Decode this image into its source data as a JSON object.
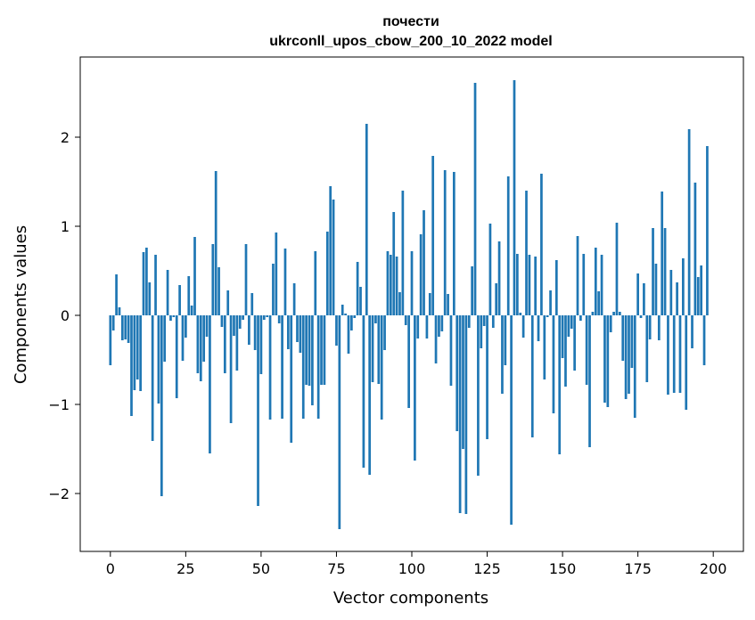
{
  "chart_data": {
    "type": "bar",
    "title": [
      "почести",
      "ukrconll_upos_cbow_200_10_2022 model"
    ],
    "xlabel": "Vector components",
    "ylabel": "Components values",
    "xlim": [
      -10,
      210
    ],
    "ylim": [
      -2.65,
      2.9
    ],
    "xticks": [
      0,
      25,
      50,
      75,
      100,
      125,
      150,
      175,
      200
    ],
    "yticks": [
      -2,
      -1,
      0,
      1,
      2
    ],
    "ytick_labels": [
      "−2",
      "−1",
      "0",
      "1",
      "2"
    ],
    "grid": false,
    "bar_color": "#1f77b4",
    "values": [
      -0.56,
      -0.17,
      0.46,
      0.09,
      -0.28,
      -0.27,
      -0.31,
      -1.13,
      -0.84,
      -0.72,
      -0.85,
      0.71,
      0.76,
      0.37,
      -1.41,
      0.68,
      -0.99,
      -2.03,
      -0.52,
      0.51,
      -0.06,
      -0.02,
      -0.93,
      0.34,
      -0.51,
      -0.25,
      0.44,
      0.11,
      0.88,
      -0.65,
      -0.74,
      -0.52,
      -0.24,
      -1.55,
      0.8,
      1.62,
      0.54,
      -0.13,
      -0.65,
      0.28,
      -1.21,
      -0.23,
      -0.62,
      -0.15,
      -0.05,
      0.8,
      -0.33,
      0.25,
      -0.39,
      -2.14,
      -0.66,
      -0.05,
      -0.02,
      -1.17,
      0.58,
      0.93,
      -0.09,
      -1.16,
      0.75,
      -0.38,
      -1.43,
      0.36,
      -0.3,
      -0.42,
      -1.16,
      -0.78,
      -0.79,
      -1.01,
      0.72,
      -1.16,
      -0.78,
      -0.78,
      0.94,
      1.45,
      1.3,
      -0.34,
      -2.4,
      0.12,
      0.02,
      -0.43,
      -0.17,
      -0.03,
      0.6,
      0.32,
      -1.71,
      2.15,
      -1.79,
      -0.75,
      -0.09,
      -0.77,
      -1.17,
      -0.39,
      0.72,
      0.68,
      1.16,
      0.66,
      0.26,
      1.4,
      -0.11,
      -1.04,
      0.72,
      -1.63,
      -0.26,
      0.91,
      1.18,
      -0.26,
      0.25,
      1.79,
      -0.54,
      -0.24,
      -0.18,
      1.63,
      0.24,
      -0.79,
      1.61,
      -1.3,
      -2.22,
      -1.5,
      -2.23,
      -0.14,
      0.55,
      2.61,
      -1.8,
      -0.37,
      -0.12,
      -1.39,
      1.03,
      -0.14,
      0.36,
      0.83,
      -0.88,
      -0.56,
      1.56,
      -2.35,
      2.64,
      0.69,
      0.03,
      -0.25,
      1.4,
      0.68,
      -1.37,
      0.66,
      -0.29,
      1.59,
      -0.72,
      -0.02,
      0.28,
      -1.1,
      0.62,
      -1.56,
      -0.48,
      -0.8,
      -0.24,
      -0.15,
      -0.62,
      0.89,
      -0.06,
      0.69,
      -0.78,
      -1.48,
      0.04,
      0.76,
      0.27,
      0.68,
      -0.98,
      -1.03,
      -0.19,
      0.04,
      1.04,
      0.04,
      -0.51,
      -0.94,
      -0.88,
      -0.59,
      -1.15,
      0.47,
      -0.03,
      0.36,
      -0.75,
      -0.27,
      0.98,
      0.58,
      -0.28,
      1.39,
      0.98,
      -0.89,
      0.51,
      -0.87,
      0.37,
      -0.87,
      0.64,
      -1.06,
      2.09,
      -0.37,
      1.49,
      0.43,
      0.56,
      -0.56,
      1.9
    ]
  }
}
